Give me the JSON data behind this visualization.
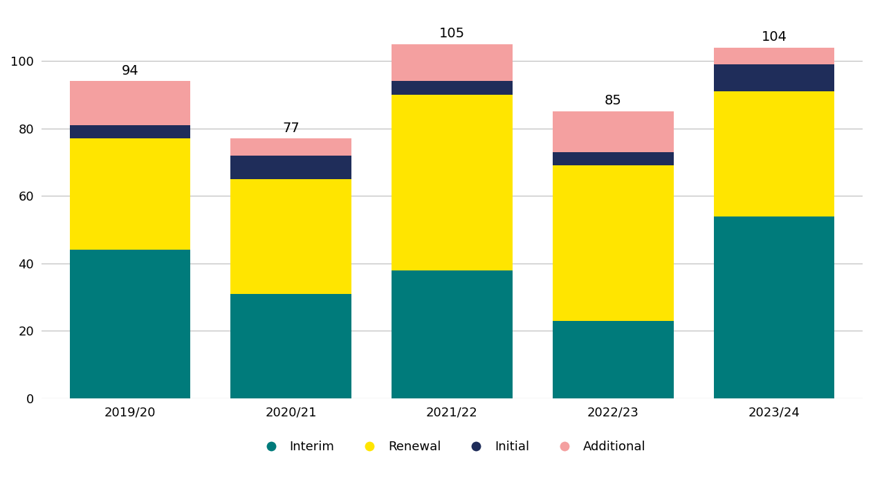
{
  "categories": [
    "2019/20",
    "2020/21",
    "2021/22",
    "2022/23",
    "2023/24"
  ],
  "interim": [
    44,
    31,
    38,
    23,
    54
  ],
  "renewal": [
    33,
    34,
    52,
    46,
    37
  ],
  "initial": [
    4,
    7,
    4,
    4,
    8
  ],
  "additional": [
    13,
    5,
    11,
    12,
    5
  ],
  "totals": [
    94,
    77,
    105,
    85,
    104
  ],
  "colors": {
    "interim": "#007B7B",
    "renewal": "#FFE500",
    "initial": "#1F2D5A",
    "additional": "#F4A0A0"
  },
  "legend_labels": [
    "Interim",
    "Renewal",
    "Initial",
    "Additional"
  ],
  "ylim": [
    0,
    115
  ],
  "yticks": [
    0,
    20,
    40,
    60,
    80,
    100
  ],
  "background_color": "#ffffff",
  "bar_width": 0.75,
  "total_fontsize": 14,
  "legend_fontsize": 13,
  "tick_fontsize": 13,
  "grid_color": "#c0c0c0",
  "grid_linewidth": 0.9
}
